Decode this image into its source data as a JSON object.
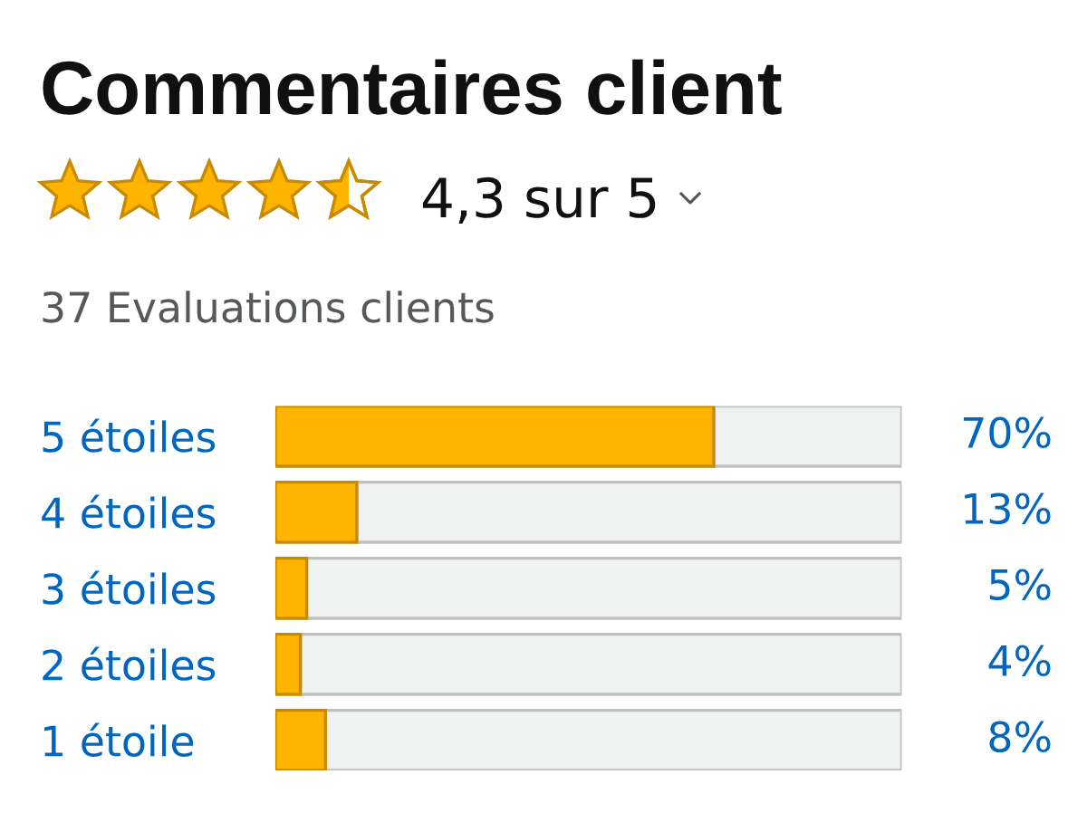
{
  "chart_data": {
    "type": "bar",
    "orientation": "horizontal",
    "stacked": true,
    "title": "Commentaires client",
    "subtitle": "37 Evaluations clients",
    "annotations": [
      "4,3 sur 5"
    ],
    "categories": [
      "5 étoiles",
      "4 étoiles",
      "3 étoiles",
      "2 étoiles",
      "1 étoile"
    ],
    "series": [
      {
        "color": "#ffb400",
        "values": [
          70,
          13,
          5,
          4,
          8
        ],
        "value_labels": [
          "70%",
          "13%",
          "5%",
          "4%",
          "8%"
        ]
      },
      {
        "color": "#f0f2f2",
        "values": [
          30,
          87,
          95,
          96,
          92
        ]
      }
    ],
    "xlim": [
      0,
      100
    ],
    "tick_labels": "y",
    "grid": false
  }
}
